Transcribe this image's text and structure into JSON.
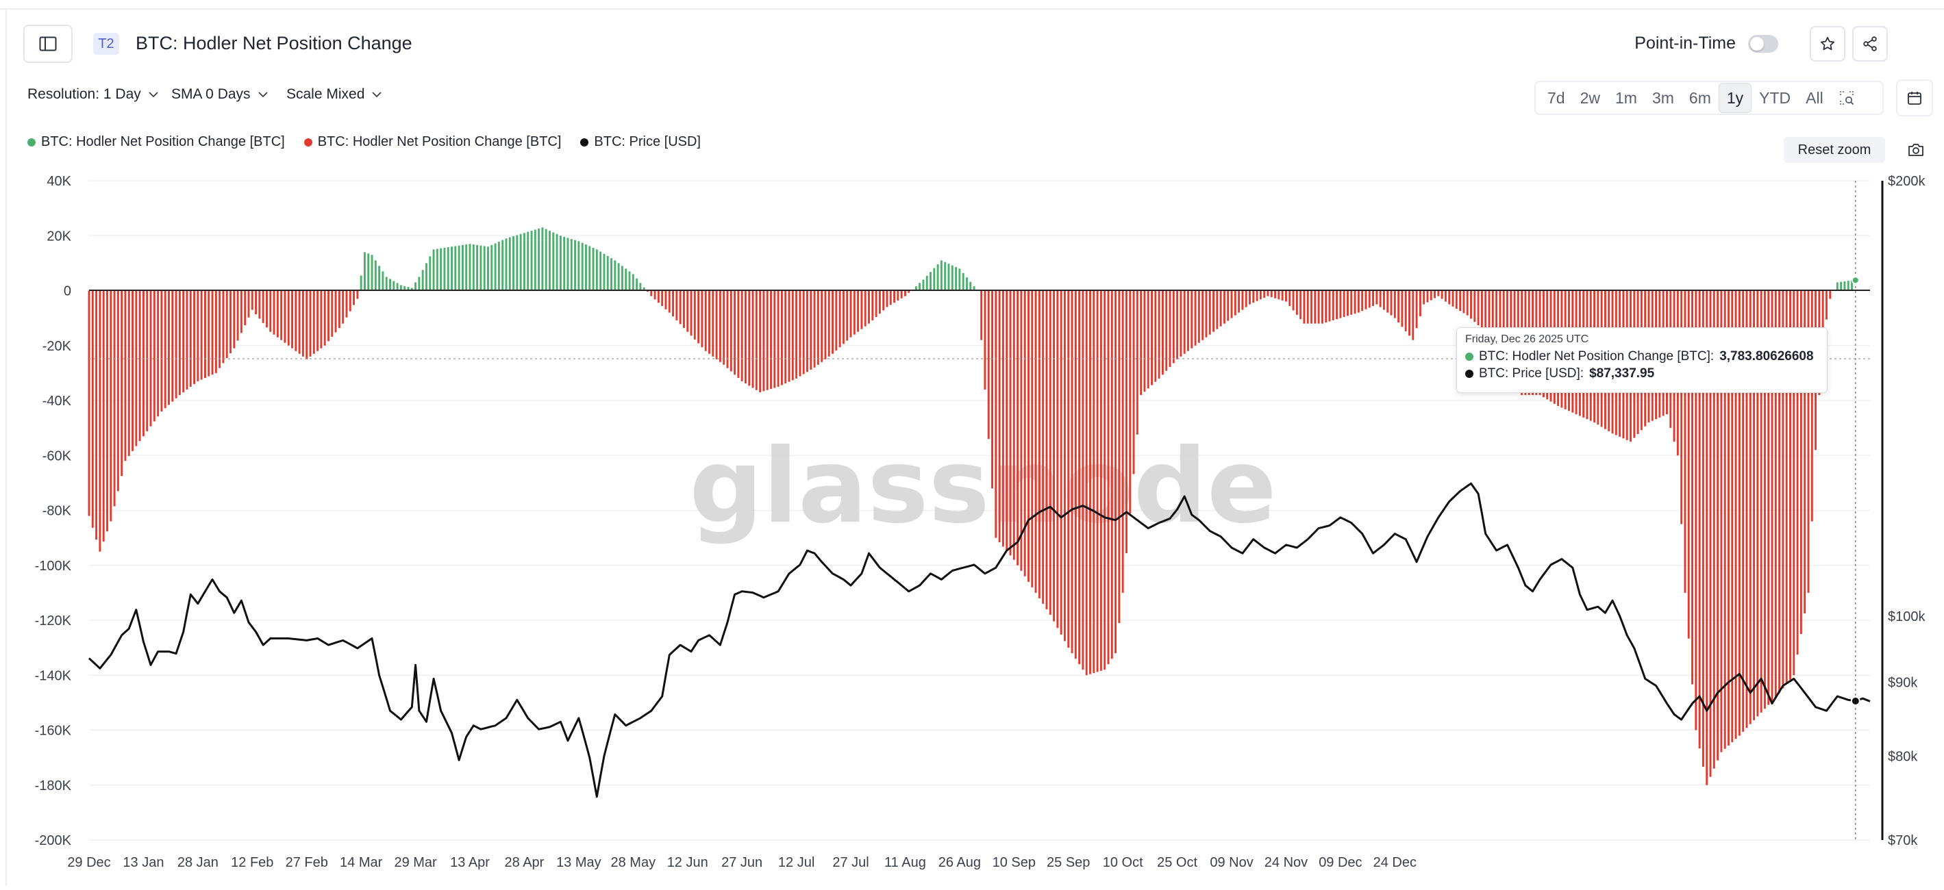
{
  "header": {
    "tag": "T2",
    "title": "BTC: Hodler Net Position Change",
    "pit_label": "Point-in-Time"
  },
  "controls": {
    "resolution": "Resolution: 1 Day",
    "sma": "SMA 0 Days",
    "scale": "Scale Mixed"
  },
  "ranges": [
    {
      "label": "7d",
      "active": false
    },
    {
      "label": "2w",
      "active": false
    },
    {
      "label": "1m",
      "active": false
    },
    {
      "label": "3m",
      "active": false
    },
    {
      "label": "6m",
      "active": false
    },
    {
      "label": "1y",
      "active": true
    },
    {
      "label": "YTD",
      "active": false
    },
    {
      "label": "All",
      "active": false
    }
  ],
  "reset_zoom": "Reset zoom",
  "legend": [
    {
      "label": "BTC: Hodler Net Position Change [BTC]",
      "color": "#4caf6e"
    },
    {
      "label": "BTC: Hodler Net Position Change [BTC]",
      "color": "#e03b2e"
    },
    {
      "label": "BTC: Price [USD]",
      "color": "#111111"
    }
  ],
  "tooltip": {
    "date": "Friday, Dec 26 2025 UTC",
    "rows": [
      {
        "label": "BTC: Hodler Net Position Change [BTC]: ",
        "value": "3,783.80626608",
        "color": "#4caf6e"
      },
      {
        "label": "BTC: Price [USD]: ",
        "value": "$87,337.95",
        "color": "#111111"
      }
    ]
  },
  "chart_data": {
    "type": "bar",
    "watermark": "glassnode",
    "colors": {
      "positive": "#4caf6e",
      "negative": "#e03b2e",
      "price": "#111111"
    },
    "x_ticks": [
      "29 Dec",
      "13 Jan",
      "28 Jan",
      "12 Feb",
      "27 Feb",
      "14 Mar",
      "29 Mar",
      "13 Apr",
      "28 Apr",
      "13 May",
      "28 May",
      "12 Jun",
      "27 Jun",
      "12 Jul",
      "27 Jul",
      "11 Aug",
      "26 Aug",
      "10 Sep",
      "25 Sep",
      "10 Oct",
      "25 Oct",
      "09 Nov",
      "24 Nov",
      "09 Dec",
      "24 Dec"
    ],
    "y_left": {
      "ylim": [
        -200000,
        40000
      ],
      "ticks": [
        "40K",
        "20K",
        "0",
        "-20K",
        "-40K",
        "-60K",
        "-80K",
        "-100K",
        "-120K",
        "-140K",
        "-160K",
        "-180K",
        "-200K"
      ]
    },
    "y_right": {
      "scale": "log",
      "ylim": [
        70000,
        200000
      ],
      "ticks": [
        {
          "label": "$200k",
          "v": 200000
        },
        {
          "label": "$100k",
          "v": 100000
        },
        {
          "label": "$90k",
          "v": 90000
        },
        {
          "label": "$80k",
          "v": 80000
        },
        {
          "label": "$70k",
          "v": 70000
        }
      ]
    },
    "net_position_anchors_btc": [
      [
        0,
        -82000
      ],
      [
        3,
        -95000
      ],
      [
        6,
        -84000
      ],
      [
        10,
        -62000
      ],
      [
        15,
        -53000
      ],
      [
        20,
        -44000
      ],
      [
        25,
        -38000
      ],
      [
        30,
        -33000
      ],
      [
        35,
        -30000
      ],
      [
        40,
        -21000
      ],
      [
        45,
        -7000
      ],
      [
        50,
        -15000
      ],
      [
        55,
        -20000
      ],
      [
        60,
        -25000
      ],
      [
        65,
        -20000
      ],
      [
        70,
        -12000
      ],
      [
        74,
        -3000
      ],
      [
        76,
        14000
      ],
      [
        78,
        13000
      ],
      [
        82,
        5000
      ],
      [
        86,
        2000
      ],
      [
        89,
        1000
      ],
      [
        91,
        5000
      ],
      [
        95,
        15000
      ],
      [
        100,
        16000
      ],
      [
        105,
        17000
      ],
      [
        110,
        16000
      ],
      [
        115,
        19000
      ],
      [
        120,
        21000
      ],
      [
        125,
        23000
      ],
      [
        130,
        20000
      ],
      [
        135,
        18000
      ],
      [
        140,
        15000
      ],
      [
        145,
        11000
      ],
      [
        150,
        6000
      ],
      [
        155,
        -2000
      ],
      [
        160,
        -8000
      ],
      [
        165,
        -15000
      ],
      [
        170,
        -22000
      ],
      [
        175,
        -27000
      ],
      [
        180,
        -33000
      ],
      [
        185,
        -37000
      ],
      [
        190,
        -35000
      ],
      [
        195,
        -32000
      ],
      [
        200,
        -28000
      ],
      [
        205,
        -23000
      ],
      [
        210,
        -17000
      ],
      [
        215,
        -12000
      ],
      [
        220,
        -6000
      ],
      [
        225,
        -2000
      ],
      [
        230,
        4000
      ],
      [
        235,
        11000
      ],
      [
        240,
        8000
      ],
      [
        245,
        0
      ],
      [
        250,
        -90000
      ],
      [
        255,
        -98000
      ],
      [
        260,
        -108000
      ],
      [
        265,
        -118000
      ],
      [
        270,
        -130000
      ],
      [
        275,
        -140000
      ],
      [
        280,
        -138000
      ],
      [
        283,
        -132000
      ],
      [
        285,
        -110000
      ],
      [
        290,
        -38000
      ],
      [
        295,
        -32000
      ],
      [
        300,
        -25000
      ],
      [
        305,
        -20000
      ],
      [
        310,
        -15000
      ],
      [
        315,
        -10000
      ],
      [
        320,
        -5000
      ],
      [
        325,
        -2000
      ],
      [
        330,
        -4000
      ],
      [
        335,
        -12000
      ],
      [
        340,
        -12000
      ],
      [
        345,
        -10000
      ],
      [
        350,
        -8000
      ],
      [
        355,
        -5000
      ],
      [
        360,
        -10000
      ],
      [
        365,
        -18000
      ],
      [
        368,
        -5000
      ],
      [
        372,
        -2000
      ],
      [
        375,
        -5000
      ],
      [
        380,
        -9000
      ],
      [
        385,
        -15000
      ],
      [
        390,
        -30000
      ],
      [
        395,
        -38000
      ],
      [
        400,
        -38000
      ],
      [
        405,
        -42000
      ],
      [
        410,
        -45000
      ],
      [
        415,
        -48000
      ],
      [
        420,
        -52000
      ],
      [
        425,
        -55000
      ],
      [
        430,
        -48000
      ],
      [
        435,
        -45000
      ],
      [
        438,
        -60000
      ],
      [
        440,
        -110000
      ],
      [
        443,
        -160000
      ],
      [
        446,
        -180000
      ],
      [
        450,
        -168000
      ],
      [
        455,
        -162000
      ],
      [
        460,
        -155000
      ],
      [
        465,
        -148000
      ],
      [
        470,
        -140000
      ],
      [
        474,
        -110000
      ],
      [
        476,
        -58000
      ],
      [
        478,
        -18000
      ],
      [
        480,
        -3000
      ],
      [
        482,
        3000
      ],
      [
        486,
        3783
      ]
    ],
    "price_anchors_usd": [
      [
        0,
        93500
      ],
      [
        3,
        92000
      ],
      [
        6,
        94000
      ],
      [
        9,
        97000
      ],
      [
        11,
        98000
      ],
      [
        13,
        101000
      ],
      [
        15,
        96000
      ],
      [
        17,
        92500
      ],
      [
        19,
        94500
      ],
      [
        22,
        94500
      ],
      [
        24,
        94200
      ],
      [
        26,
        97500
      ],
      [
        28,
        103500
      ],
      [
        30,
        102000
      ],
      [
        32,
        104000
      ],
      [
        34,
        106000
      ],
      [
        36,
        104000
      ],
      [
        38,
        103000
      ],
      [
        40,
        100500
      ],
      [
        42,
        102500
      ],
      [
        44,
        99000
      ],
      [
        46,
        97500
      ],
      [
        48,
        95500
      ],
      [
        50,
        96500
      ],
      [
        55,
        96500
      ],
      [
        60,
        96200
      ],
      [
        63,
        96500
      ],
      [
        66,
        95500
      ],
      [
        70,
        96200
      ],
      [
        74,
        95000
      ],
      [
        78,
        96500
      ],
      [
        80,
        91000
      ],
      [
        83,
        86000
      ],
      [
        86,
        84800
      ],
      [
        89,
        86500
      ],
      [
        90,
        92500
      ],
      [
        91,
        86000
      ],
      [
        93,
        84500
      ],
      [
        95,
        90500
      ],
      [
        97,
        86000
      ],
      [
        100,
        83000
      ],
      [
        102,
        79500
      ],
      [
        104,
        82500
      ],
      [
        106,
        84000
      ],
      [
        108,
        83500
      ],
      [
        112,
        84000
      ],
      [
        115,
        85000
      ],
      [
        118,
        87500
      ],
      [
        121,
        85000
      ],
      [
        124,
        83500
      ],
      [
        127,
        83800
      ],
      [
        130,
        84500
      ],
      [
        132,
        82000
      ],
      [
        135,
        85000
      ],
      [
        138,
        79800
      ],
      [
        140,
        75000
      ],
      [
        142,
        80000
      ],
      [
        145,
        85500
      ],
      [
        148,
        84000
      ],
      [
        152,
        85000
      ],
      [
        155,
        86000
      ],
      [
        158,
        88000
      ],
      [
        160,
        94000
      ],
      [
        163,
        95500
      ],
      [
        166,
        94500
      ],
      [
        168,
        96200
      ],
      [
        171,
        97000
      ],
      [
        174,
        95500
      ],
      [
        176,
        99000
      ],
      [
        178,
        103500
      ],
      [
        180,
        104000
      ],
      [
        183,
        103800
      ],
      [
        186,
        103000
      ],
      [
        190,
        104000
      ],
      [
        193,
        107000
      ],
      [
        196,
        108500
      ],
      [
        198,
        111000
      ],
      [
        200,
        110500
      ],
      [
        202,
        109000
      ],
      [
        205,
        107000
      ],
      [
        208,
        106000
      ],
      [
        210,
        105000
      ],
      [
        213,
        107000
      ],
      [
        215,
        110500
      ],
      [
        218,
        108000
      ],
      [
        222,
        106000
      ],
      [
        226,
        104000
      ],
      [
        229,
        105000
      ],
      [
        232,
        107000
      ],
      [
        235,
        106000
      ],
      [
        238,
        107500
      ],
      [
        241,
        108000
      ],
      [
        244,
        108500
      ],
      [
        247,
        107000
      ],
      [
        250,
        108000
      ],
      [
        253,
        111000
      ],
      [
        256,
        112500
      ],
      [
        259,
        116500
      ],
      [
        262,
        118000
      ],
      [
        265,
        119000
      ],
      [
        268,
        117000
      ],
      [
        271,
        118500
      ],
      [
        274,
        119200
      ],
      [
        277,
        118200
      ],
      [
        280,
        117000
      ],
      [
        283,
        116500
      ],
      [
        286,
        118000
      ],
      [
        289,
        116500
      ],
      [
        292,
        115000
      ],
      [
        295,
        116000
      ],
      [
        298,
        116800
      ],
      [
        300,
        118500
      ],
      [
        302,
        121000
      ],
      [
        304,
        117500
      ],
      [
        306,
        116500
      ],
      [
        309,
        114500
      ],
      [
        312,
        113500
      ],
      [
        315,
        111500
      ],
      [
        318,
        110500
      ],
      [
        321,
        113000
      ],
      [
        324,
        111500
      ],
      [
        327,
        110500
      ],
      [
        330,
        112000
      ],
      [
        333,
        111500
      ],
      [
        336,
        113000
      ],
      [
        339,
        115000
      ],
      [
        342,
        115500
      ],
      [
        345,
        117000
      ],
      [
        348,
        116000
      ],
      [
        351,
        114000
      ],
      [
        354,
        110500
      ],
      [
        357,
        112000
      ],
      [
        360,
        114000
      ],
      [
        363,
        113000
      ],
      [
        366,
        109000
      ],
      [
        369,
        113500
      ],
      [
        372,
        117000
      ],
      [
        375,
        120000
      ],
      [
        378,
        122000
      ],
      [
        381,
        123500
      ],
      [
        383,
        121500
      ],
      [
        385,
        114000
      ],
      [
        388,
        111000
      ],
      [
        391,
        112000
      ],
      [
        394,
        108000
      ],
      [
        396,
        105000
      ],
      [
        398,
        104000
      ],
      [
        400,
        106000
      ],
      [
        403,
        108500
      ],
      [
        406,
        109500
      ],
      [
        409,
        108000
      ],
      [
        411,
        103500
      ],
      [
        413,
        101000
      ],
      [
        416,
        101500
      ],
      [
        418,
        100500
      ],
      [
        420,
        102500
      ],
      [
        422,
        100000
      ],
      [
        424,
        97000
      ],
      [
        426,
        95000
      ],
      [
        429,
        90500
      ],
      [
        432,
        89500
      ],
      [
        435,
        87000
      ],
      [
        437,
        85500
      ],
      [
        439,
        84800
      ],
      [
        442,
        87000
      ],
      [
        444,
        88000
      ],
      [
        446,
        86000
      ],
      [
        449,
        88500
      ],
      [
        452,
        90000
      ],
      [
        455,
        91200
      ],
      [
        458,
        88500
      ],
      [
        461,
        90500
      ],
      [
        464,
        87000
      ],
      [
        467,
        89500
      ],
      [
        470,
        90500
      ],
      [
        473,
        88500
      ],
      [
        476,
        86500
      ],
      [
        479,
        86000
      ],
      [
        482,
        88000
      ],
      [
        485,
        87500
      ],
      [
        487,
        87340
      ],
      [
        489,
        87700
      ],
      [
        491,
        87300
      ]
    ]
  }
}
